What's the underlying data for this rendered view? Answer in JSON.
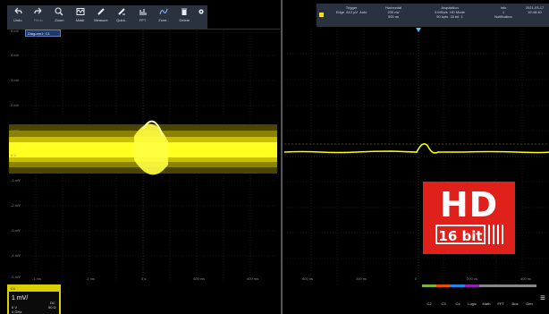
{
  "toolbar": {
    "items": [
      {
        "label": "Undo",
        "icon": "undo-icon"
      },
      {
        "label": "Redo",
        "icon": "redo-icon"
      },
      {
        "label": "Zoom",
        "icon": "magnifier-icon"
      },
      {
        "label": "Mask",
        "icon": "mask-icon"
      },
      {
        "label": "Measure",
        "icon": "ruler-icon"
      },
      {
        "label": "Quick..",
        "icon": "quick-meas-icon"
      },
      {
        "label": "FFT",
        "icon": "fft-icon"
      },
      {
        "label": "Zone..",
        "icon": "zone-trigger-icon"
      },
      {
        "label": "Delete",
        "icon": "trash-icon"
      },
      {
        "label": "",
        "icon": "gear-icon"
      }
    ]
  },
  "diagram_tab": "Diagram1: C1",
  "left_axis": {
    "y_ticks": [
      "5 mV",
      "4 mV",
      "3 mV",
      "2 mV",
      "1 mV",
      "0 V",
      "-1 mV",
      "-2 mV",
      "-3 mV",
      "-4 mV",
      "-5 mV"
    ],
    "x_ticks": [
      "-1 ms",
      "-1 ms",
      "0 s",
      "400 ms",
      "400 ms"
    ]
  },
  "channel": {
    "name": "C1",
    "scale": "1 mV/",
    "offset": "0 V",
    "coupling": "DC",
    "impedance": "50 Ω",
    "bw": "4 GHz"
  },
  "status": {
    "trigger": {
      "title": "Trigger",
      "type": "Edge",
      "level": "812 µV",
      "mode": "Auto"
    },
    "horizontal": {
      "title": "Horizontal",
      "scale": "200 ns/",
      "pos": "500 ns"
    },
    "acquisition": {
      "title": "Acquisition",
      "rate": "5 MSa/s",
      "mode": "HD Mode",
      "points": "50 kpts",
      "bits": "16 bit",
      "rbw": "4 bit",
      "count": "1"
    },
    "info": {
      "title": "Info",
      "count": "1",
      "notification": "Notification"
    },
    "datetime": {
      "date": "2021-03-17",
      "time": "15:48:40"
    }
  },
  "right_axis": {
    "x_ticks": [
      "400 ns",
      "200 ns",
      "0",
      "200 ns",
      "400 ns"
    ]
  },
  "bottom_buttons": [
    {
      "label": "C2",
      "color": "#7cb342"
    },
    {
      "label": "C3",
      "color": "#e65100"
    },
    {
      "label": "C4",
      "color": "#1e88e5"
    },
    {
      "label": "Logic",
      "color": "#8e24aa"
    },
    {
      "label": "Math",
      "color": "#888888"
    },
    {
      "label": "FFT",
      "color": "#888888"
    },
    {
      "label": "Bus",
      "color": "#888888"
    },
    {
      "label": "Gen",
      "color": "#888888"
    }
  ],
  "badge": {
    "big": "HD",
    "small": "16 bit"
  },
  "colors": {
    "trace": "#ffff00",
    "toolbar": "#2a3240",
    "badge": "#e0201b"
  }
}
